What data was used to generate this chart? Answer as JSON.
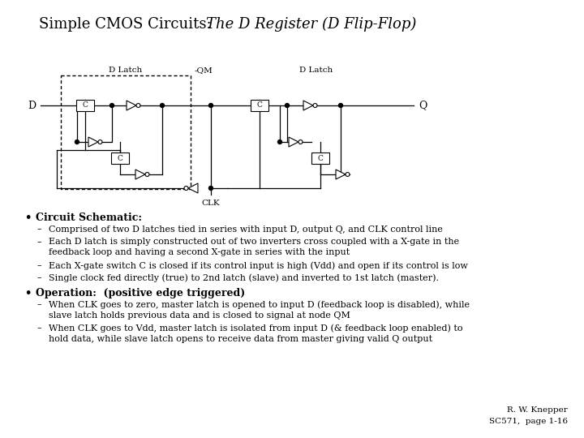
{
  "title_regular": "Simple CMOS Circuits:  ",
  "title_italic": "The D Register (D Flip-Flop)",
  "bg_color": "#ffffff",
  "text_color": "#000000",
  "bullet1_title": "Circuit Schematic:",
  "bullet1_items": [
    "Comprised of two D latches tied in series with input D, output Q, and CLK control line",
    "Each D latch is simply constructed out of two inverters cross coupled with a X-gate in the\nfeedback loop and having a second X-gate in series with the input",
    "Each X-gate switch C is closed if its control input is high (Vdd) and open if its control is low",
    "Single clock fed directly (true) to 2nd latch (slave) and inverted to 1st latch (master)."
  ],
  "bullet2_title": "Operation:  (positive edge triggered)",
  "bullet2_items": [
    "When CLK goes to zero, master latch is opened to input D (feedback loop is disabled), while\nslave latch holds previous data and is closed to signal at node QM",
    "When CLK goes to Vdd, master latch is isolated from input D (& feedback loop enabled) to\nhold data, while slave latch opens to receive data from master giving valid Q output"
  ],
  "footer1": "R. W. Knepper",
  "footer2": "SC571,  page 1-16"
}
